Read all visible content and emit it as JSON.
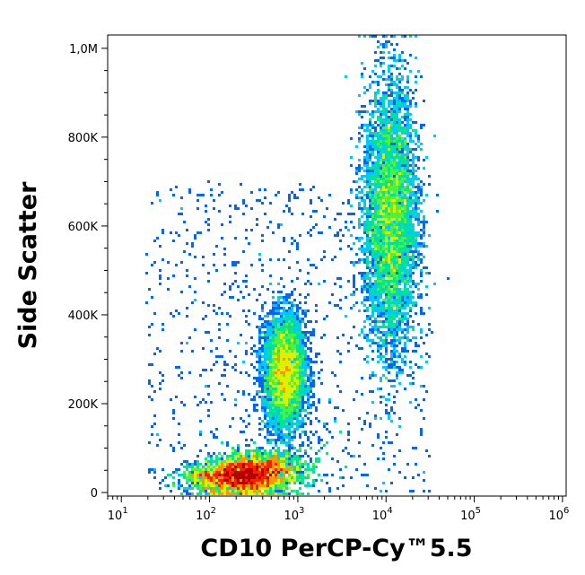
{
  "chart_data": {
    "type": "scatter",
    "subtype": "flow-cytometry-density-dot-plot",
    "xlabel": "CD10 PerCP-Cy™5.5",
    "ylabel": "Side Scatter",
    "x_scale": "log",
    "xlim": [
      7,
      1100000
    ],
    "ylim": [
      -8000,
      1030000
    ],
    "x_ticks": [
      {
        "value": 10,
        "base": "10",
        "exp": "1"
      },
      {
        "value": 100,
        "base": "10",
        "exp": "2"
      },
      {
        "value": 1000,
        "base": "10",
        "exp": "3"
      },
      {
        "value": 10000,
        "base": "10",
        "exp": "4"
      },
      {
        "value": 100000,
        "base": "10",
        "exp": "5"
      },
      {
        "value": 1000000,
        "base": "10",
        "exp": "6"
      }
    ],
    "y_ticks": [
      {
        "value": 0,
        "label": "0"
      },
      {
        "value": 200000,
        "label": "200K"
      },
      {
        "value": 400000,
        "label": "400K"
      },
      {
        "value": 600000,
        "label": "600K"
      },
      {
        "value": 800000,
        "label": "800K"
      },
      {
        "value": 1000000,
        "label": "1,0M"
      }
    ],
    "grid": false,
    "density_colormap": [
      "#0000c8",
      "#0064ff",
      "#00c8ff",
      "#00e68c",
      "#50f03c",
      "#dcf000",
      "#ff9600",
      "#ff1e00",
      "#b40000"
    ],
    "populations": [
      {
        "center_log10_x": 2.35,
        "center_y": 40000,
        "sd_log10_x": 0.28,
        "sd_y": 22000,
        "relative_density": 1.0
      },
      {
        "center_log10_x": 2.85,
        "center_y": 270000,
        "sd_log10_x": 0.12,
        "sd_y": 65000,
        "relative_density": 0.35
      },
      {
        "center_log10_x": 4.05,
        "center_y": 620000,
        "sd_log10_x": 0.15,
        "sd_y": 150000,
        "relative_density": 0.55
      }
    ]
  }
}
